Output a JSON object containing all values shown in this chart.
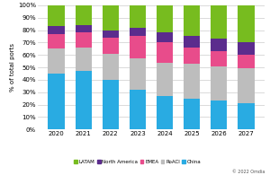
{
  "years": [
    "2020",
    "2021",
    "2022",
    "2023",
    "2024",
    "2025",
    "2026",
    "2027"
  ],
  "China": [
    45,
    47,
    40,
    32,
    27,
    25,
    23,
    21
  ],
  "RoACI": [
    20,
    19,
    21,
    25,
    27,
    28,
    28,
    28
  ],
  "EMEA": [
    12,
    12,
    13,
    18,
    16,
    13,
    12,
    11
  ],
  "North America": [
    6,
    6,
    6,
    7,
    8,
    9,
    10,
    10
  ],
  "LATAM": [
    17,
    16,
    20,
    18,
    22,
    25,
    27,
    30
  ],
  "colors": {
    "China": "#29ABE2",
    "RoACI": "#BDBDBD",
    "EMEA": "#E84C8B",
    "North America": "#5B2C8D",
    "LATAM": "#77BC1F"
  },
  "ylabel": "% of total ports",
  "ylim": [
    0,
    100
  ],
  "yticks": [
    0,
    10,
    20,
    30,
    40,
    50,
    60,
    70,
    80,
    90,
    100
  ],
  "ytick_labels": [
    "0%",
    "10%",
    "20%",
    "30%",
    "40%",
    "50%",
    "60%",
    "70%",
    "80%",
    "90%",
    "100%"
  ],
  "copyright": "© 2022 Omdia",
  "legend_order": [
    "LATAM",
    "North America",
    "EMEA",
    "RoACI",
    "China"
  ]
}
